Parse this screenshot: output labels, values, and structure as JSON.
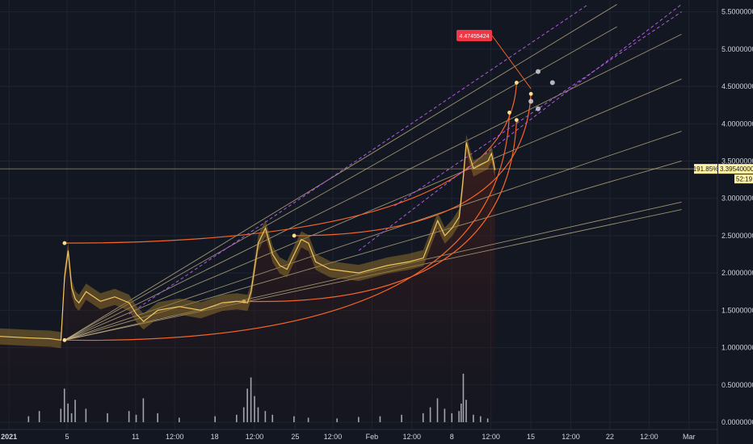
{
  "chart_data": {
    "type": "line",
    "title": "",
    "xlabel": "",
    "ylabel": "",
    "x_ticks": [
      "2021",
      "5",
      "11",
      "12:00",
      "18",
      "12:00",
      "25",
      "12:00",
      "Feb",
      "12:00",
      "8",
      "12:00",
      "15",
      "12:00",
      "22",
      "12:00",
      "Mar"
    ],
    "y_ticks": [
      "0.00000000",
      "0.50000000",
      "1.00000000",
      "1.50000000",
      "2.00000000",
      "2.50000000",
      "3.00000000",
      "3.50000000",
      "4.00000000",
      "4.50000000",
      "5.00000000",
      "5.50000000"
    ],
    "ylim": [
      0,
      5.55
    ],
    "grid": true,
    "price_series": {
      "name": "",
      "x": [
        0,
        0.04,
        0.07,
        0.085,
        0.09,
        0.095,
        0.1,
        0.105,
        0.11,
        0.12,
        0.14,
        0.16,
        0.18,
        0.19,
        0.2,
        0.22,
        0.25,
        0.28,
        0.31,
        0.33,
        0.345,
        0.35,
        0.36,
        0.37,
        0.38,
        0.39,
        0.4,
        0.41,
        0.42,
        0.43,
        0.44,
        0.46,
        0.5,
        0.54,
        0.57,
        0.59,
        0.6,
        0.61,
        0.62,
        0.63,
        0.64,
        0.645,
        0.65,
        0.655,
        0.66,
        0.67,
        0.68,
        0.685,
        0.69
      ],
      "y": [
        1.15,
        1.13,
        1.12,
        1.1,
        1.95,
        2.3,
        1.8,
        1.65,
        1.6,
        1.75,
        1.62,
        1.68,
        1.6,
        1.45,
        1.35,
        1.5,
        1.55,
        1.5,
        1.6,
        1.62,
        1.6,
        1.75,
        2.4,
        2.6,
        2.25,
        2.1,
        2.05,
        2.25,
        2.45,
        2.4,
        2.15,
        2.05,
        2.0,
        2.1,
        2.15,
        2.2,
        2.45,
        2.7,
        2.5,
        2.6,
        2.75,
        3.2,
        3.75,
        3.55,
        3.4,
        3.45,
        3.5,
        3.6,
        3.38
      ],
      "last_value": "3.39540000",
      "last_change": "191.85%",
      "countdown": "52:19",
      "color": "#f2c560"
    },
    "volume_series": {
      "x": [
        0.04,
        0.055,
        0.085,
        0.09,
        0.095,
        0.1,
        0.105,
        0.12,
        0.15,
        0.18,
        0.19,
        0.2,
        0.22,
        0.25,
        0.3,
        0.33,
        0.34,
        0.345,
        0.35,
        0.355,
        0.36,
        0.37,
        0.38,
        0.41,
        0.43,
        0.47,
        0.5,
        0.53,
        0.56,
        0.59,
        0.6,
        0.61,
        0.62,
        0.63,
        0.64,
        0.643,
        0.646,
        0.65,
        0.66,
        0.67,
        0.68
      ],
      "y": [
        0.08,
        0.15,
        0.18,
        0.45,
        0.25,
        0.12,
        0.3,
        0.18,
        0.12,
        0.15,
        0.1,
        0.32,
        0.12,
        0.06,
        0.08,
        0.1,
        0.2,
        0.45,
        0.6,
        0.35,
        0.2,
        0.15,
        0.1,
        0.08,
        0.06,
        0.05,
        0.07,
        0.08,
        0.1,
        0.12,
        0.2,
        0.32,
        0.18,
        0.12,
        0.15,
        0.25,
        0.65,
        0.3,
        0.1,
        0.08,
        0.05
      ],
      "color": "#d1d4dc"
    },
    "fan_origin": [
      0.09,
      1.1
    ],
    "fan_lines_end_x": [
      0.86,
      0.86,
      0.95,
      0.95,
      0.95,
      0.95,
      0.95,
      0.95
    ],
    "fan_lines_end_y": [
      5.6,
      5.3,
      5.2,
      4.6,
      3.9,
      3.5,
      2.95,
      2.85
    ],
    "orange_arcs": [
      {
        "from": [
          0.09,
          2.4
        ],
        "to": [
          0.72,
          4.55
        ]
      },
      {
        "from": [
          0.09,
          1.1
        ],
        "to": [
          0.71,
          4.15
        ]
      },
      {
        "from": [
          0.34,
          1.62
        ],
        "to": [
          0.72,
          4.05
        ]
      },
      {
        "from": [
          0.41,
          2.5
        ],
        "to": [
          0.74,
          4.4
        ]
      }
    ],
    "purple_dashed": [
      {
        "from": [
          0.18,
          1.45
        ],
        "to": [
          0.82,
          5.6
        ]
      },
      {
        "from": [
          0.5,
          2.3
        ],
        "to": [
          0.95,
          5.6
        ]
      },
      {
        "from": [
          0.55,
          2.9
        ],
        "to": [
          0.95,
          5.5
        ]
      }
    ],
    "annotation": {
      "label": "4.47455424",
      "target": [
        0.74,
        4.47
      ]
    },
    "markers": [
      {
        "id": "1",
        "x": 0.75,
        "y": 4.7
      },
      {
        "id": "2",
        "x": 0.77,
        "y": 4.55
      },
      {
        "id": "3",
        "x": 0.74,
        "y": 4.3
      },
      {
        "id": "4",
        "x": 0.75,
        "y": 4.2
      }
    ]
  },
  "colors": {
    "background": "#131722",
    "grid": "#1f2431",
    "axis_text": "#d1d4dc",
    "price": "#f2c560",
    "band": "#8a6d2c",
    "fan": "#c9b98a",
    "orange": "#f4642a",
    "purple": "#b05ae0",
    "red_label": "#f23645"
  }
}
